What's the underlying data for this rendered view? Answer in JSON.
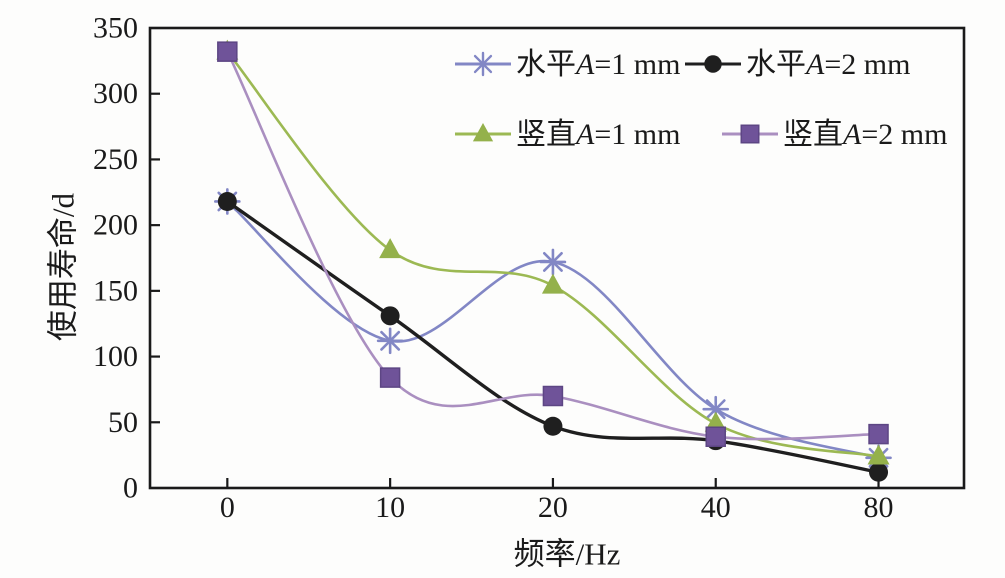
{
  "figure": {
    "background": "#fdfdfc",
    "frame_color": "#1a1a1a"
  },
  "chart_data": {
    "type": "line",
    "title": "",
    "xlabel": "频率/Hz",
    "ylabel": "使用寿命/d",
    "categories": [
      "0",
      "10",
      "20",
      "40",
      "80"
    ],
    "ylim": [
      0,
      350
    ],
    "y_tick_step": 50,
    "y_tick_labels": [
      "0",
      "50",
      "100",
      "150",
      "200",
      "250",
      "300",
      "350"
    ],
    "grid": false,
    "legend_position": "top-inside-two-rows",
    "smoothing": "spline",
    "series": [
      {
        "name": "水平A=1 mm",
        "marker": "asterisk",
        "line_color": "#8287c5",
        "marker_color": "#8287c5",
        "line_width": 2.6,
        "values": [
          218,
          112,
          172,
          60,
          23
        ]
      },
      {
        "name": "水平A=2 mm",
        "marker": "circle",
        "line_color": "#1f1f1f",
        "marker_color": "#1f1f1f",
        "line_width": 3.4,
        "values": [
          218,
          131,
          47,
          36,
          12
        ]
      },
      {
        "name": "竖直A=1 mm",
        "marker": "triangle",
        "line_color": "#9cb953",
        "marker_color": "#94b14b",
        "line_width": 2.6,
        "values": [
          332,
          181,
          154,
          49,
          24
        ]
      },
      {
        "name": "竖直A=2 mm",
        "marker": "square",
        "line_color": "#aa8fc0",
        "marker_color": "#6f5399",
        "line_width": 2.6,
        "values": [
          332,
          84,
          70,
          39,
          41
        ]
      }
    ]
  }
}
